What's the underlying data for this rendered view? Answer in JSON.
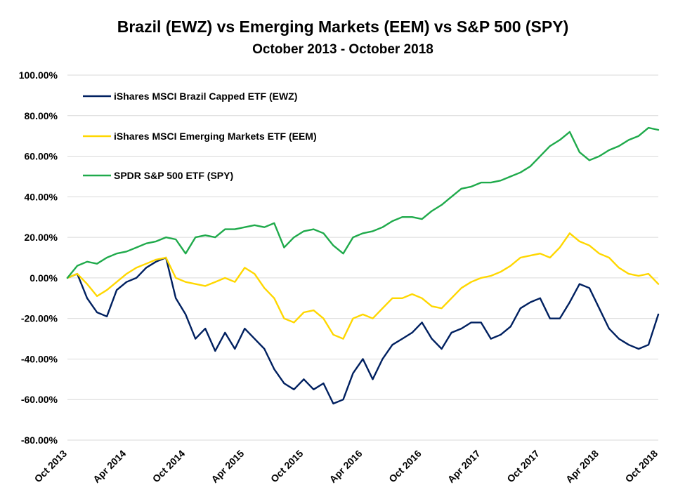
{
  "chart_data": {
    "type": "line",
    "title": "Brazil (EWZ) vs Emerging Markets (EEM) vs S&P 500 (SPY)",
    "subtitle": "October 2013 - October 2018",
    "xlabel": "",
    "ylabel": "",
    "ylim": [
      -80,
      100
    ],
    "yticks": [
      100,
      80,
      60,
      40,
      20,
      0,
      -20,
      -40,
      -60,
      -80
    ],
    "ytick_labels": [
      "100.00%",
      "80.00%",
      "60.00%",
      "40.00%",
      "20.00%",
      "0.00%",
      "-20.00%",
      "-40.00%",
      "-60.00%",
      "-80.00%"
    ],
    "xlim": [
      "2013-10",
      "2018-10"
    ],
    "xticks": [
      "2013-10",
      "2014-04",
      "2014-10",
      "2015-04",
      "2015-10",
      "2016-04",
      "2016-10",
      "2017-04",
      "2017-10",
      "2018-04",
      "2018-10"
    ],
    "xtick_labels": [
      "Oct 2013",
      "Apr 2014",
      "Oct 2014",
      "Apr 2015",
      "Oct 2015",
      "Apr 2016",
      "Oct 2016",
      "Apr 2017",
      "Oct 2017",
      "Apr 2018",
      "Oct 2018"
    ],
    "grid": "horizontal",
    "legend_position": "top-left",
    "series": [
      {
        "name": "iShares MSCI Brazil Capped ETF (EWZ)",
        "color": "#002060",
        "x": [
          "2013-10",
          "2013-11",
          "2013-12",
          "2014-01",
          "2014-02",
          "2014-03",
          "2014-04",
          "2014-05",
          "2014-06",
          "2014-07",
          "2014-08",
          "2014-09",
          "2014-10",
          "2014-11",
          "2014-12",
          "2015-01",
          "2015-02",
          "2015-03",
          "2015-04",
          "2015-05",
          "2015-06",
          "2015-07",
          "2015-08",
          "2015-09",
          "2015-10",
          "2015-11",
          "2015-12",
          "2016-01",
          "2016-02",
          "2016-03",
          "2016-04",
          "2016-05",
          "2016-06",
          "2016-07",
          "2016-08",
          "2016-09",
          "2016-10",
          "2016-11",
          "2016-12",
          "2017-01",
          "2017-02",
          "2017-03",
          "2017-04",
          "2017-05",
          "2017-06",
          "2017-07",
          "2017-08",
          "2017-09",
          "2017-10",
          "2017-11",
          "2017-12",
          "2018-01",
          "2018-02",
          "2018-03",
          "2018-04",
          "2018-05",
          "2018-06",
          "2018-07",
          "2018-08",
          "2018-09",
          "2018-10"
        ],
        "values": [
          0,
          2,
          -10,
          -17,
          -19,
          -6,
          -2,
          0,
          5,
          8,
          10,
          -10,
          -18,
          -30,
          -25,
          -36,
          -27,
          -35,
          -25,
          -30,
          -35,
          -45,
          -52,
          -55,
          -50,
          -55,
          -52,
          -62,
          -60,
          -47,
          -40,
          -50,
          -40,
          -33,
          -30,
          -27,
          -22,
          -30,
          -35,
          -27,
          -25,
          -22,
          -22,
          -30,
          -28,
          -24,
          -15,
          -12,
          -10,
          -20,
          -20,
          -12,
          -3,
          -5,
          -15,
          -25,
          -30,
          -33,
          -35,
          -33,
          -18
        ]
      },
      {
        "name": "iShares MSCI Emerging Markets ETF (EEM)",
        "color": "#ffd700",
        "x": [
          "2013-10",
          "2013-11",
          "2013-12",
          "2014-01",
          "2014-02",
          "2014-03",
          "2014-04",
          "2014-05",
          "2014-06",
          "2014-07",
          "2014-08",
          "2014-09",
          "2014-10",
          "2014-11",
          "2014-12",
          "2015-01",
          "2015-02",
          "2015-03",
          "2015-04",
          "2015-05",
          "2015-06",
          "2015-07",
          "2015-08",
          "2015-09",
          "2015-10",
          "2015-11",
          "2015-12",
          "2016-01",
          "2016-02",
          "2016-03",
          "2016-04",
          "2016-05",
          "2016-06",
          "2016-07",
          "2016-08",
          "2016-09",
          "2016-10",
          "2016-11",
          "2016-12",
          "2017-01",
          "2017-02",
          "2017-03",
          "2017-04",
          "2017-05",
          "2017-06",
          "2017-07",
          "2017-08",
          "2017-09",
          "2017-10",
          "2017-11",
          "2017-12",
          "2018-01",
          "2018-02",
          "2018-03",
          "2018-04",
          "2018-05",
          "2018-06",
          "2018-07",
          "2018-08",
          "2018-09",
          "2018-10"
        ],
        "values": [
          0,
          2,
          -3,
          -9,
          -6,
          -2,
          2,
          5,
          7,
          9,
          10,
          0,
          -2,
          -3,
          -4,
          -2,
          0,
          -2,
          5,
          2,
          -5,
          -10,
          -20,
          -22,
          -17,
          -16,
          -20,
          -28,
          -30,
          -20,
          -18,
          -20,
          -15,
          -10,
          -10,
          -8,
          -10,
          -14,
          -15,
          -10,
          -5,
          -2,
          0,
          1,
          3,
          6,
          10,
          11,
          12,
          10,
          15,
          22,
          18,
          16,
          12,
          10,
          5,
          2,
          1,
          2,
          -3
        ]
      },
      {
        "name": "SPDR S&P 500 ETF (SPY)",
        "color": "#1faa4b",
        "x": [
          "2013-10",
          "2013-11",
          "2013-12",
          "2014-01",
          "2014-02",
          "2014-03",
          "2014-04",
          "2014-05",
          "2014-06",
          "2014-07",
          "2014-08",
          "2014-09",
          "2014-10",
          "2014-11",
          "2014-12",
          "2015-01",
          "2015-02",
          "2015-03",
          "2015-04",
          "2015-05",
          "2015-06",
          "2015-07",
          "2015-08",
          "2015-09",
          "2015-10",
          "2015-11",
          "2015-12",
          "2016-01",
          "2016-02",
          "2016-03",
          "2016-04",
          "2016-05",
          "2016-06",
          "2016-07",
          "2016-08",
          "2016-09",
          "2016-10",
          "2016-11",
          "2016-12",
          "2017-01",
          "2017-02",
          "2017-03",
          "2017-04",
          "2017-05",
          "2017-06",
          "2017-07",
          "2017-08",
          "2017-09",
          "2017-10",
          "2017-11",
          "2017-12",
          "2018-01",
          "2018-02",
          "2018-03",
          "2018-04",
          "2018-05",
          "2018-06",
          "2018-07",
          "2018-08",
          "2018-09",
          "2018-10"
        ],
        "values": [
          0,
          6,
          8,
          7,
          10,
          12,
          13,
          15,
          17,
          18,
          20,
          19,
          12,
          20,
          21,
          20,
          24,
          24,
          25,
          26,
          25,
          27,
          15,
          20,
          23,
          24,
          22,
          16,
          12,
          20,
          22,
          23,
          25,
          28,
          30,
          30,
          29,
          33,
          36,
          40,
          44,
          45,
          47,
          47,
          48,
          50,
          52,
          55,
          60,
          65,
          68,
          72,
          62,
          58,
          60,
          63,
          65,
          68,
          70,
          74,
          73
        ]
      }
    ]
  }
}
